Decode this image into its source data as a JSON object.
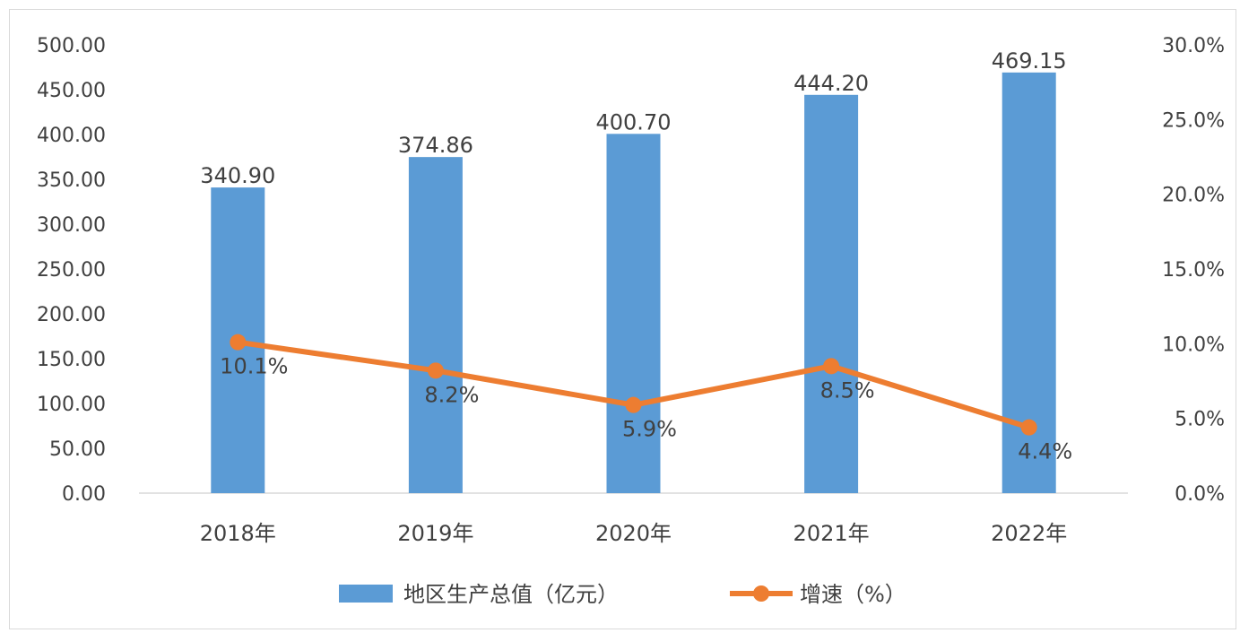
{
  "chart_data": {
    "type": "bar+line",
    "title": "",
    "categories": [
      "2018年",
      "2019年",
      "2020年",
      "2021年",
      "2022年"
    ],
    "series": [
      {
        "name": "地区生产总值（亿元）",
        "type": "bar",
        "axis": "left",
        "values": [
          340.9,
          374.86,
          400.7,
          444.2,
          469.15
        ],
        "labels": [
          "340.90",
          "374.86",
          "400.70",
          "444.20",
          "469.15"
        ],
        "color": "#5b9bd5"
      },
      {
        "name": "增速（%）",
        "type": "line",
        "axis": "right",
        "values": [
          10.1,
          8.2,
          5.9,
          8.5,
          4.4
        ],
        "labels": [
          "10.1%",
          "8.2%",
          "5.9%",
          "8.5%",
          "4.4%"
        ],
        "color": "#ed7d31"
      }
    ],
    "y_left": {
      "min": 0,
      "max": 500,
      "ticks": [
        "0.00",
        "50.00",
        "100.00",
        "150.00",
        "200.00",
        "250.00",
        "300.00",
        "350.00",
        "400.00",
        "450.00",
        "500.00"
      ]
    },
    "y_right": {
      "min": 0,
      "max": 30,
      "ticks": [
        "0.0%",
        "5.0%",
        "10.0%",
        "15.0%",
        "20.0%",
        "25.0%",
        "30.0%"
      ]
    },
    "legend_position": "bottom",
    "grid": false
  }
}
